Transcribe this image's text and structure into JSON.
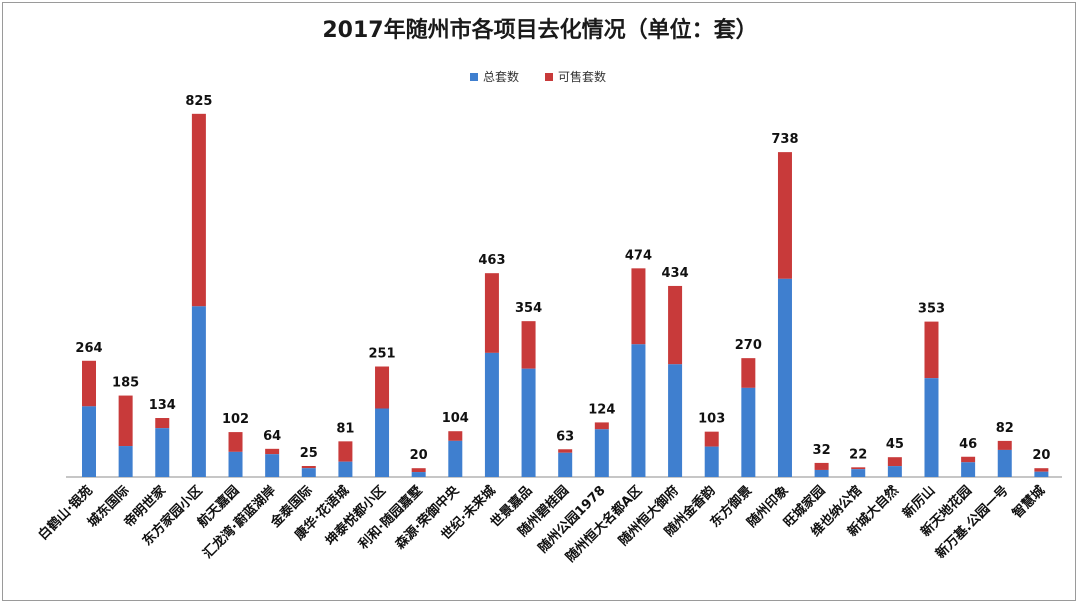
{
  "chart_data": {
    "type": "bar",
    "stacked": true,
    "title": "2017年随州市各项目去化情况（单位：套）",
    "categories": [
      "白鹤山·银苑",
      "城东国际",
      "帝明世家",
      "东方家园小区",
      "航天嘉园",
      "汇龙湾·蔚蓝湖岸",
      "金泰国际",
      "康华·花语城",
      "坤泰悦都小区",
      "利和·随园嘉墅",
      "森源·荣御中央",
      "世纪·未来城",
      "世景嘉品",
      "随州碧桂园",
      "随州公园1978",
      "随州恒大名都A区",
      "随州恒大御府",
      "随州金香韵",
      "东方御景",
      "随州印象",
      "旺城家园",
      "维也纳公馆",
      "新城大自然",
      "新厉山",
      "新天地花园",
      "新万基.公园一号",
      "智慧城"
    ],
    "totals": [
      264,
      185,
      134,
      825,
      102,
      64,
      25,
      81,
      251,
      20,
      104,
      463,
      354,
      63,
      124,
      474,
      434,
      103,
      270,
      738,
      32,
      22,
      45,
      353,
      46,
      82,
      20
    ],
    "series": [
      {
        "name": "总套数",
        "color": "#3f7fcf"
      },
      {
        "name": "可售套数",
        "color": "#c83a3a"
      }
    ],
    "total_fraction": [
      0.608,
      0.38,
      0.828,
      0.47,
      0.56,
      0.81,
      0.8,
      0.43,
      0.62,
      0.56,
      0.79,
      0.609,
      0.695,
      0.874,
      0.874,
      0.636,
      0.59,
      0.67,
      0.75,
      0.61,
      0.5,
      0.81,
      0.55,
      0.636,
      0.727,
      0.75,
      0.6
    ],
    "legend_position": "top",
    "grid": false
  }
}
